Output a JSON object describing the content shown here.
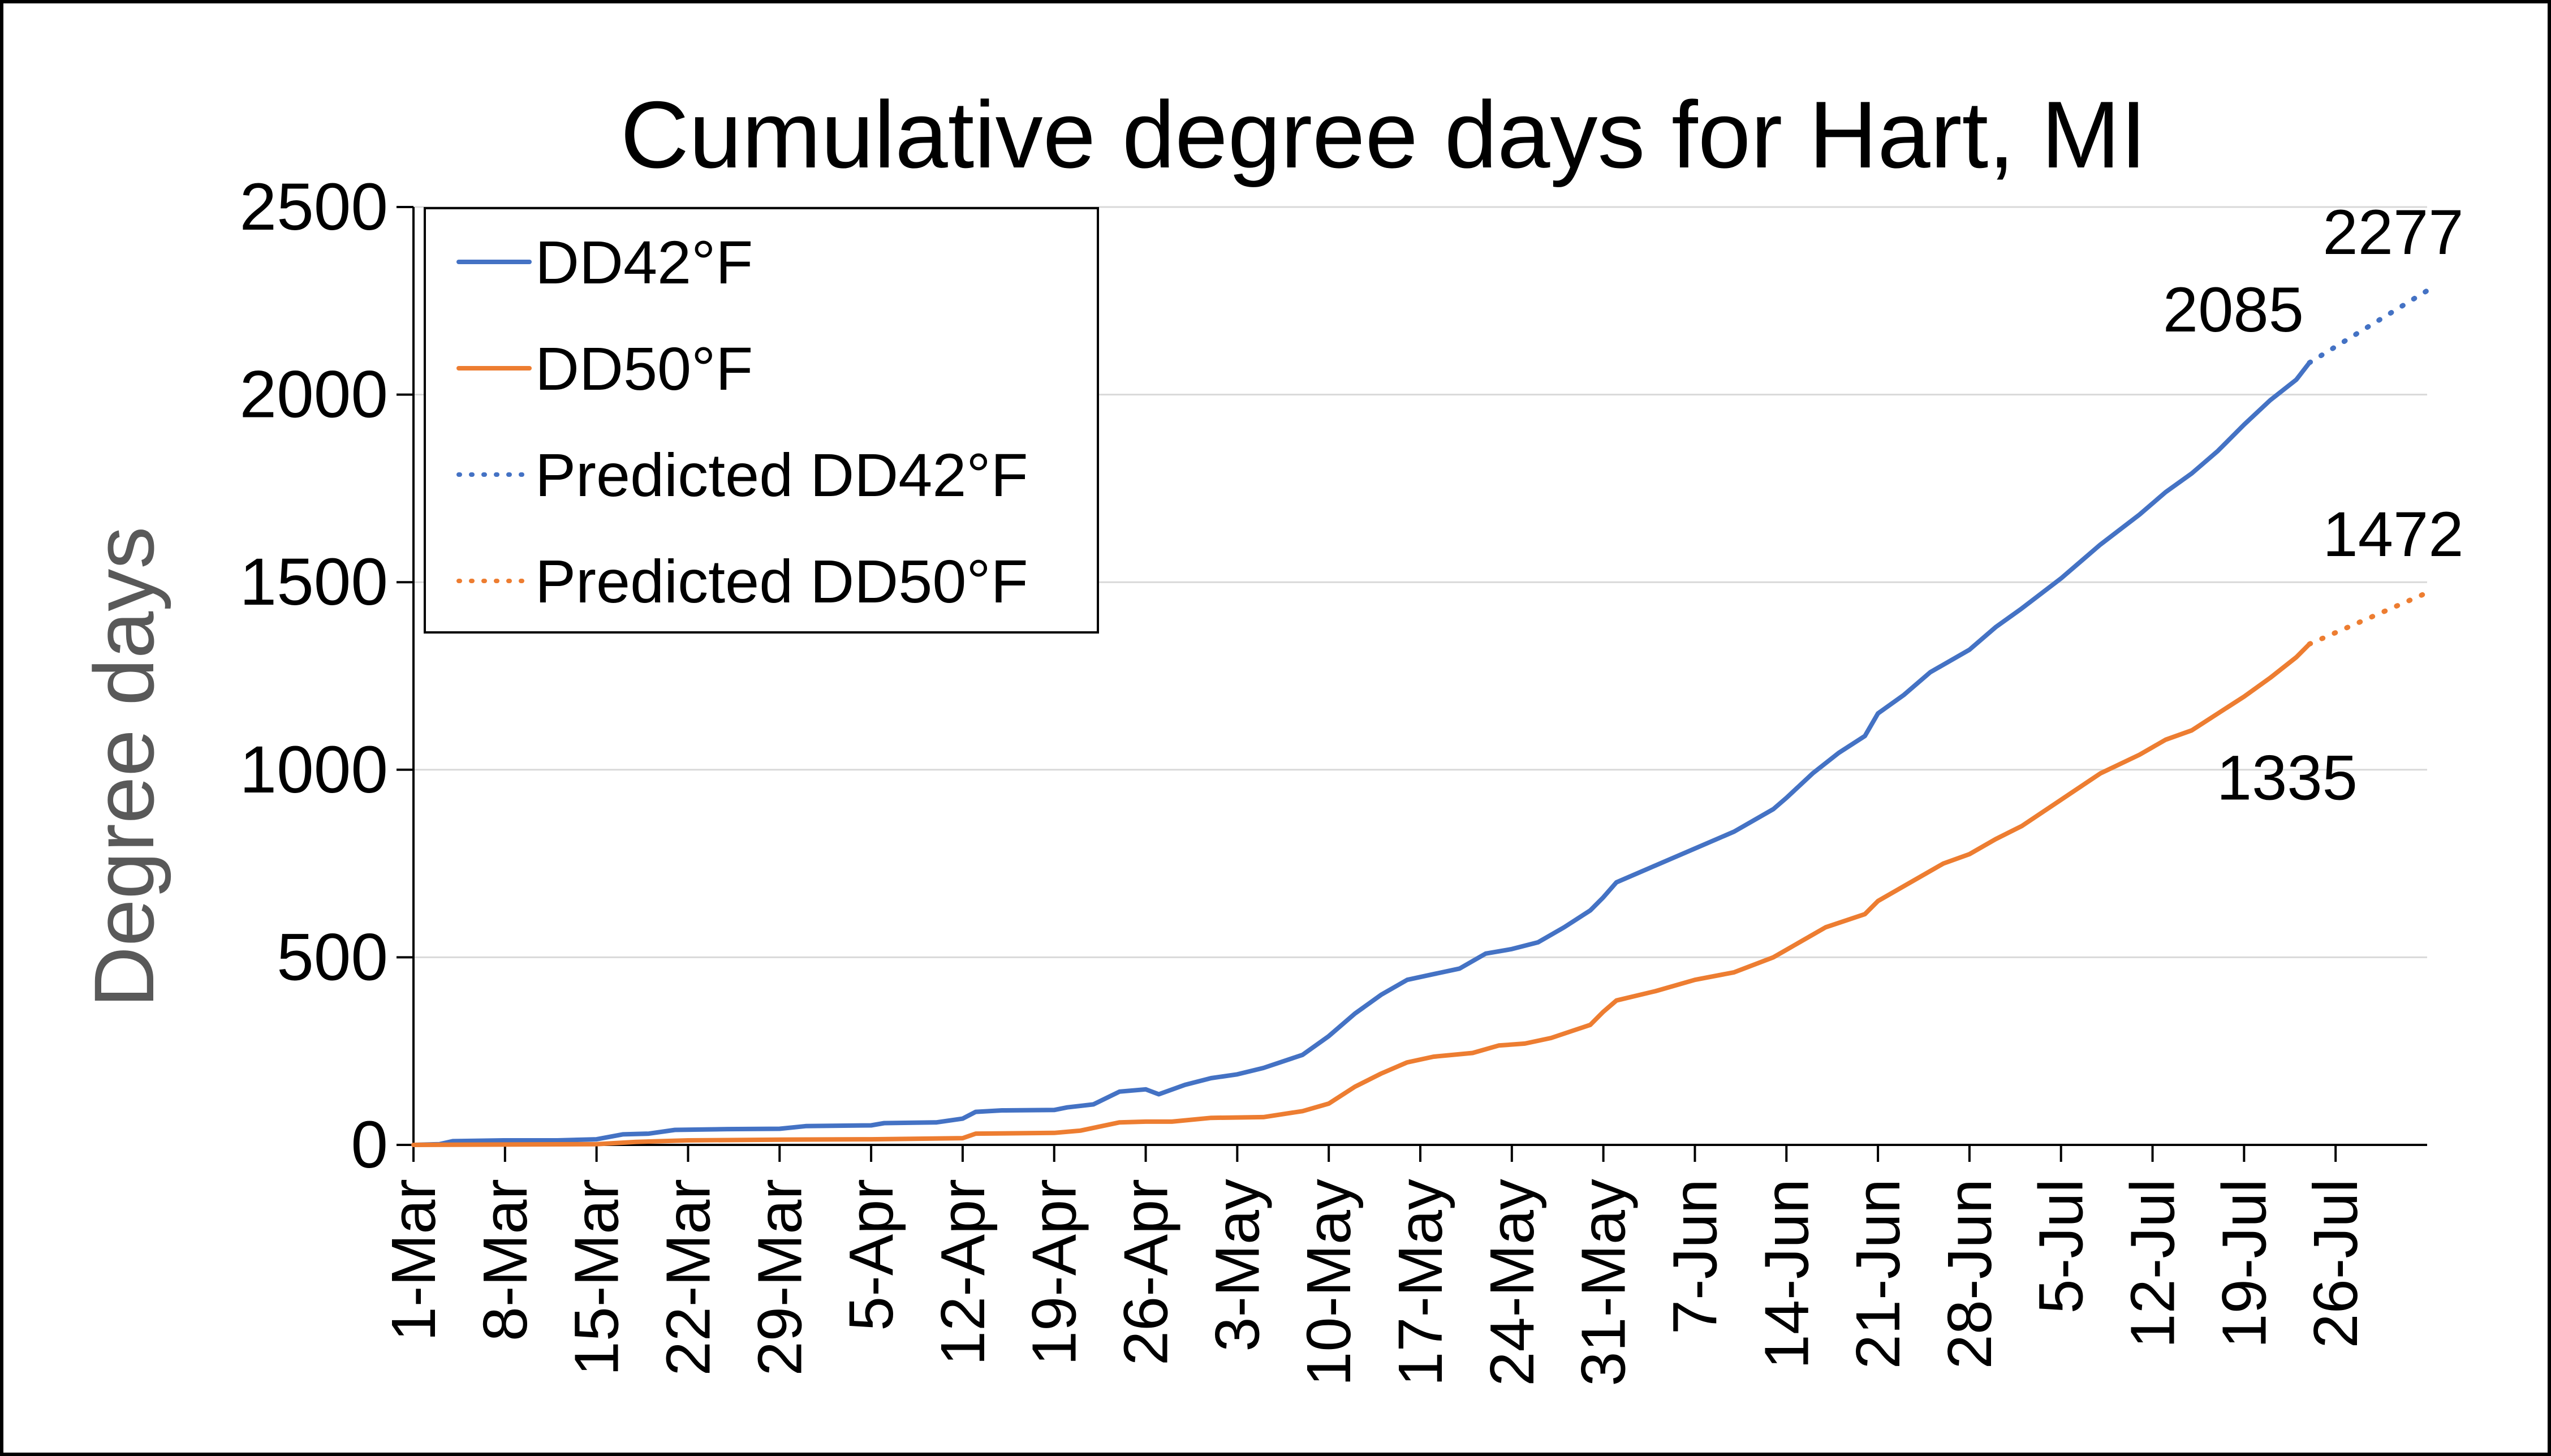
{
  "chart_data": {
    "type": "line",
    "title": "Cumulative degree days for Hart, MI",
    "ylabel": "Degree days",
    "xlabel": "",
    "ylim": [
      0,
      2500
    ],
    "yticks": [
      0,
      500,
      1000,
      1500,
      2000,
      2500
    ],
    "xticks": [
      "1-Mar",
      "8-Mar",
      "15-Mar",
      "22-Mar",
      "29-Mar",
      "5-Apr",
      "12-Apr",
      "19-Apr",
      "26-Apr",
      "3-May",
      "10-May",
      "17-May",
      "24-May",
      "31-May",
      "7-Jun",
      "14-Jun",
      "21-Jun",
      "28-Jun",
      "5-Jul",
      "12-Jul",
      "19-Jul",
      "26-Jul"
    ],
    "xlim": [
      "1-Mar",
      "2-Aug"
    ],
    "grid": true,
    "legend": "top-left",
    "series": [
      {
        "name": "DD42°F",
        "style": "solid",
        "color": "#4472C4",
        "points": [
          [
            "1-Mar",
            0
          ],
          [
            "3-Mar",
            2
          ],
          [
            "4-Mar",
            10
          ],
          [
            "8-Mar",
            12
          ],
          [
            "12-Mar",
            12
          ],
          [
            "15-Mar",
            15
          ],
          [
            "17-Mar",
            28
          ],
          [
            "19-Mar",
            30
          ],
          [
            "21-Mar",
            40
          ],
          [
            "25-Mar",
            42
          ],
          [
            "29-Mar",
            43
          ],
          [
            "31-Mar",
            50
          ],
          [
            "5-Apr",
            52
          ],
          [
            "6-Apr",
            58
          ],
          [
            "10-Apr",
            60
          ],
          [
            "12-Apr",
            70
          ],
          [
            "13-Apr",
            88
          ],
          [
            "15-Apr",
            92
          ],
          [
            "19-Apr",
            93
          ],
          [
            "20-Apr",
            100
          ],
          [
            "22-Apr",
            108
          ],
          [
            "24-Apr",
            142
          ],
          [
            "26-Apr",
            148
          ],
          [
            "27-Apr",
            135
          ],
          [
            "29-Apr",
            160
          ],
          [
            "1-May",
            178
          ],
          [
            "3-May",
            188
          ],
          [
            "5-May",
            205
          ],
          [
            "8-May",
            240
          ],
          [
            "10-May",
            290
          ],
          [
            "12-May",
            350
          ],
          [
            "14-May",
            400
          ],
          [
            "16-May",
            440
          ],
          [
            "18-May",
            455
          ],
          [
            "20-May",
            470
          ],
          [
            "22-May",
            510
          ],
          [
            "24-May",
            522
          ],
          [
            "26-May",
            540
          ],
          [
            "28-May",
            580
          ],
          [
            "30-May",
            625
          ],
          [
            "31-May",
            660
          ],
          [
            "1-Jun",
            700
          ],
          [
            "4-Jun",
            745
          ],
          [
            "7-Jun",
            790
          ],
          [
            "10-Jun",
            835
          ],
          [
            "13-Jun",
            895
          ],
          [
            "14-Jun",
            925
          ],
          [
            "16-Jun",
            990
          ],
          [
            "18-Jun",
            1045
          ],
          [
            "20-Jun",
            1090
          ],
          [
            "21-Jun",
            1150
          ],
          [
            "23-Jun",
            1200
          ],
          [
            "25-Jun",
            1260
          ],
          [
            "28-Jun",
            1320
          ],
          [
            "30-Jun",
            1380
          ],
          [
            "2-Jul",
            1430
          ],
          [
            "5-Jul",
            1510
          ],
          [
            "8-Jul",
            1600
          ],
          [
            "11-Jul",
            1680
          ],
          [
            "13-Jul",
            1740
          ],
          [
            "15-Jul",
            1790
          ],
          [
            "17-Jul",
            1850
          ],
          [
            "19-Jul",
            1920
          ],
          [
            "21-Jul",
            1985
          ],
          [
            "23-Jul",
            2040
          ],
          [
            "24-Jul",
            2085
          ]
        ]
      },
      {
        "name": "DD50°F",
        "style": "solid",
        "color": "#ED7D31",
        "points": [
          [
            "1-Mar",
            0
          ],
          [
            "15-Mar",
            2
          ],
          [
            "18-Mar",
            8
          ],
          [
            "22-Mar",
            12
          ],
          [
            "29-Mar",
            14
          ],
          [
            "5-Apr",
            15
          ],
          [
            "12-Apr",
            18
          ],
          [
            "13-Apr",
            30
          ],
          [
            "19-Apr",
            32
          ],
          [
            "21-Apr",
            38
          ],
          [
            "24-Apr",
            60
          ],
          [
            "26-Apr",
            62
          ],
          [
            "28-Apr",
            62
          ],
          [
            "1-May",
            72
          ],
          [
            "5-May",
            74
          ],
          [
            "8-May",
            90
          ],
          [
            "10-May",
            110
          ],
          [
            "12-May",
            155
          ],
          [
            "14-May",
            190
          ],
          [
            "16-May",
            220
          ],
          [
            "18-May",
            235
          ],
          [
            "21-May",
            245
          ],
          [
            "23-May",
            265
          ],
          [
            "25-May",
            270
          ],
          [
            "27-May",
            285
          ],
          [
            "30-May",
            320
          ],
          [
            "31-May",
            355
          ],
          [
            "1-Jun",
            385
          ],
          [
            "4-Jun",
            410
          ],
          [
            "7-Jun",
            440
          ],
          [
            "10-Jun",
            460
          ],
          [
            "13-Jun",
            500
          ],
          [
            "14-Jun",
            520
          ],
          [
            "17-Jun",
            580
          ],
          [
            "20-Jun",
            615
          ],
          [
            "21-Jun",
            650
          ],
          [
            "24-Jun",
            710
          ],
          [
            "26-Jun",
            750
          ],
          [
            "28-Jun",
            775
          ],
          [
            "30-Jun",
            815
          ],
          [
            "2-Jul",
            850
          ],
          [
            "5-Jul",
            920
          ],
          [
            "8-Jul",
            990
          ],
          [
            "11-Jul",
            1040
          ],
          [
            "13-Jul",
            1080
          ],
          [
            "15-Jul",
            1105
          ],
          [
            "17-Jul",
            1150
          ],
          [
            "19-Jul",
            1195
          ],
          [
            "21-Jul",
            1245
          ],
          [
            "23-Jul",
            1300
          ],
          [
            "24-Jul",
            1335
          ]
        ]
      },
      {
        "name": "Predicted DD42°F",
        "style": "dotted",
        "color": "#4472C4",
        "points": [
          [
            "24-Jul",
            2085
          ],
          [
            "2-Aug",
            2277
          ]
        ]
      },
      {
        "name": "Predicted DD50°F",
        "style": "dotted",
        "color": "#ED7D31",
        "points": [
          [
            "24-Jul",
            1335
          ],
          [
            "2-Aug",
            1472
          ]
        ]
      }
    ],
    "annotations": [
      {
        "text": "2085",
        "x": "24-Jul",
        "y": 2085,
        "position": "above-left"
      },
      {
        "text": "2277",
        "x": "2-Aug",
        "y": 2277,
        "position": "above"
      },
      {
        "text": "1472",
        "x": "2-Aug",
        "y": 1472,
        "position": "above"
      },
      {
        "text": "1335",
        "x": "24-Jul",
        "y": 1335,
        "position": "below"
      }
    ]
  }
}
